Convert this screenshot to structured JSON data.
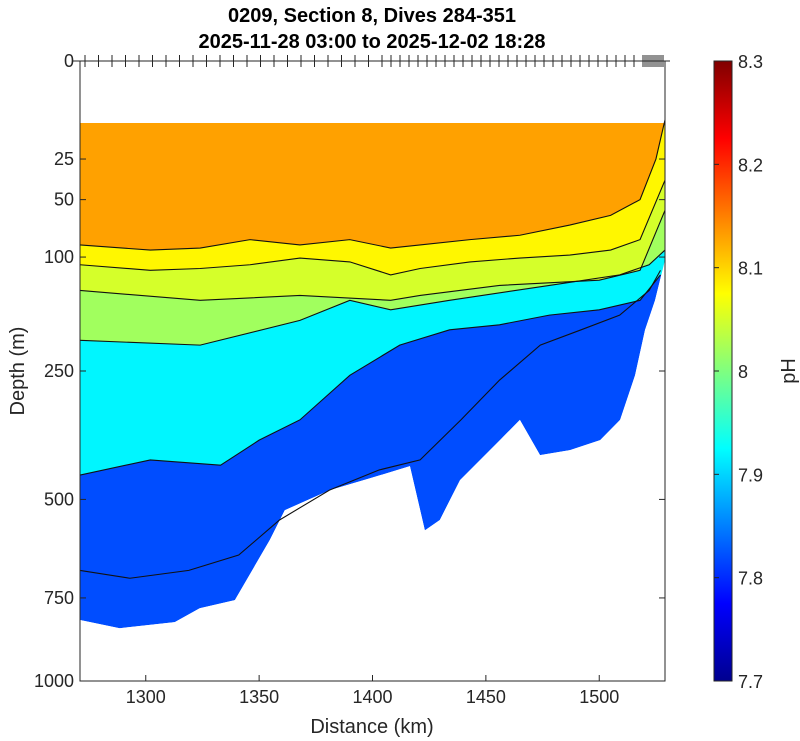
{
  "chart_data": {
    "type": "heatmap",
    "title": [
      "0209, Section 8, Dives 284-351",
      "2025-11-28 03:00 to 2025-12-02 18:28"
    ],
    "xlabel": "Distance (km)",
    "ylabel": "Depth (m)",
    "xlim": [
      1271,
      1529
    ],
    "ylim": [
      0,
      1000
    ],
    "yscale": "sqrt",
    "xticks": [
      "1300",
      "1350",
      "1400",
      "1450",
      "1500"
    ],
    "xtick_values": [
      1300,
      1350,
      1400,
      1450,
      1500
    ],
    "yticks": [
      "0",
      "25",
      "50",
      "100",
      "250",
      "500",
      "750",
      "1000"
    ],
    "ytick_values": [
      0,
      25,
      50,
      100,
      250,
      500,
      750,
      1000
    ],
    "colorbar": {
      "label": "pH",
      "range": [
        7.7,
        8.3
      ],
      "ticks": [
        "7.7",
        "7.8",
        "7.9",
        "8",
        "8.1",
        "8.2",
        "8.3"
      ],
      "tick_values": [
        7.7,
        7.8,
        7.9,
        8.0,
        8.1,
        8.2,
        8.3
      ]
    },
    "data_top_depth": 10,
    "data_bottom_boundary": [
      [
        1271,
        813
      ],
      [
        1288.5,
        837
      ],
      [
        1312.8,
        819
      ],
      [
        1323.8,
        779
      ],
      [
        1339.3,
        756
      ],
      [
        1354.7,
        597
      ],
      [
        1361.3,
        525
      ],
      [
        1381.2,
        479
      ],
      [
        1398.9,
        453
      ],
      [
        1416.5,
        427
      ],
      [
        1423.1,
        573
      ],
      [
        1429.7,
        548
      ],
      [
        1438.6,
        457
      ],
      [
        1456.2,
        374
      ],
      [
        1465,
        335
      ],
      [
        1473.9,
        404
      ],
      [
        1487.1,
        394
      ],
      [
        1500.4,
        374
      ],
      [
        1509.2,
        335
      ],
      [
        1515.8,
        257
      ],
      [
        1520.2,
        188
      ],
      [
        1524.6,
        149
      ],
      [
        1529,
        103
      ]
    ],
    "bands": [
      {
        "above_contour": "7.9",
        "ph": 7.82
      },
      {
        "above_contour": "7.95",
        "ph": 7.92
      },
      {
        "above_contour": "8.0",
        "ph": 8.02
      },
      {
        "above_contour": "8.05",
        "ph": 8.05
      },
      {
        "above_contour": "8.07",
        "ph": 8.08
      },
      {
        "above_contour": "8.1",
        "ph": 8.13
      }
    ],
    "contours": [
      {
        "level": "8.1",
        "points": [
          [
            1271,
            88
          ],
          [
            1302,
            93
          ],
          [
            1324,
            91
          ],
          [
            1346,
            83
          ],
          [
            1368,
            88
          ],
          [
            1390,
            83
          ],
          [
            1408,
            91
          ],
          [
            1421,
            88
          ],
          [
            1443,
            83
          ],
          [
            1465,
            79
          ],
          [
            1487,
            70
          ],
          [
            1505,
            62
          ],
          [
            1518,
            50
          ],
          [
            1525,
            25
          ],
          [
            1529,
            9
          ]
        ]
      },
      {
        "level": "8.07",
        "points": [
          [
            1271,
            108
          ],
          [
            1302,
            114
          ],
          [
            1324,
            112
          ],
          [
            1346,
            108
          ],
          [
            1368,
            101
          ],
          [
            1390,
            105
          ],
          [
            1408,
            119
          ],
          [
            1421,
            112
          ],
          [
            1443,
            105
          ],
          [
            1465,
            101
          ],
          [
            1487,
            98
          ],
          [
            1505,
            93
          ],
          [
            1518,
            83
          ],
          [
            1529,
            37
          ]
        ]
      },
      {
        "level": "8.05",
        "points": [
          [
            1271,
            137
          ],
          [
            1324,
            149
          ],
          [
            1368,
            143
          ],
          [
            1408,
            149
          ],
          [
            1421,
            143
          ],
          [
            1456,
            131
          ],
          [
            1500,
            125
          ],
          [
            1518,
            114
          ],
          [
            1529,
            58
          ]
        ]
      },
      {
        "level": "8.0",
        "points": [
          [
            1271,
            203
          ],
          [
            1324,
            210
          ],
          [
            1368,
            175
          ],
          [
            1390,
            149
          ],
          [
            1408,
            161
          ],
          [
            1434,
            149
          ],
          [
            1478,
            131
          ],
          [
            1509,
            119
          ],
          [
            1522,
            108
          ],
          [
            1529,
            93
          ]
        ]
      },
      {
        "level": "7.95",
        "points": [
          [
            1271,
            446
          ],
          [
            1302,
            414
          ],
          [
            1333,
            425
          ],
          [
            1350,
            374
          ],
          [
            1368,
            335
          ],
          [
            1390,
            257
          ],
          [
            1412,
            210
          ],
          [
            1434,
            188
          ],
          [
            1456,
            181
          ],
          [
            1478,
            168
          ],
          [
            1500,
            161
          ],
          [
            1518,
            149
          ],
          [
            1527,
            119
          ]
        ]
      },
      {
        "level": "7.9",
        "points": [
          [
            1271,
            675
          ],
          [
            1293,
            696
          ],
          [
            1319,
            675
          ],
          [
            1341,
            635
          ],
          [
            1359,
            548
          ],
          [
            1381,
            479
          ],
          [
            1403,
            435
          ],
          [
            1421,
            414
          ],
          [
            1439,
            335
          ],
          [
            1456,
            265
          ],
          [
            1474,
            210
          ],
          [
            1492,
            188
          ],
          [
            1509,
            168
          ],
          [
            1522,
            137
          ],
          [
            1527,
            114
          ]
        ]
      }
    ]
  }
}
